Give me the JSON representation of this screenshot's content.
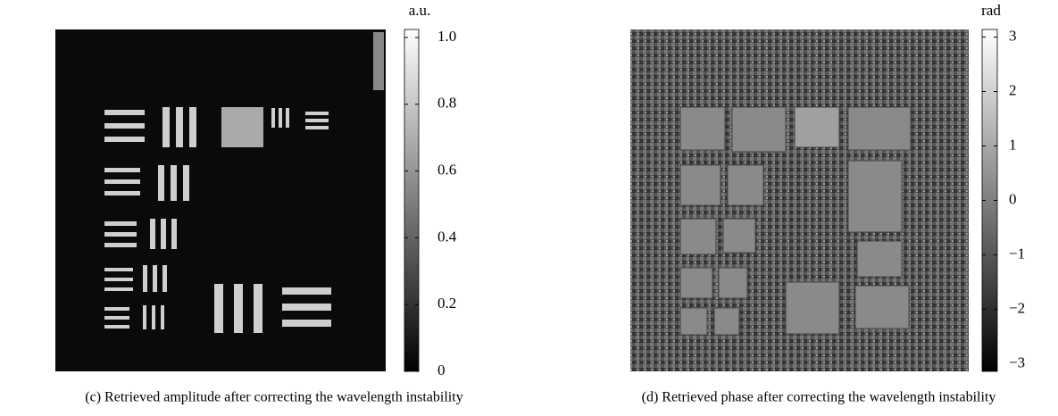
{
  "panels": [
    {
      "colorbar": {
        "unit": "a.u.",
        "lim": [
          0,
          1.024
        ],
        "ticks": [
          0,
          0.2,
          0.4,
          0.6,
          0.8,
          {
            "value": 1,
            "label": "1.0"
          }
        ]
      },
      "caption": "(c) Retrieved amplitude after correcting the wavelength instability"
    },
    {
      "colorbar": {
        "unit": "rad",
        "lim": [
          -3.14,
          3.14
        ],
        "ticks": [
          {
            "value": -3,
            "label": "−3"
          },
          {
            "value": -2,
            "label": "−2"
          },
          {
            "value": -1,
            "label": "−1"
          },
          0,
          1,
          2,
          3
        ]
      },
      "caption": "(d) Retrieved phase after correcting the wavelength instability"
    }
  ]
}
